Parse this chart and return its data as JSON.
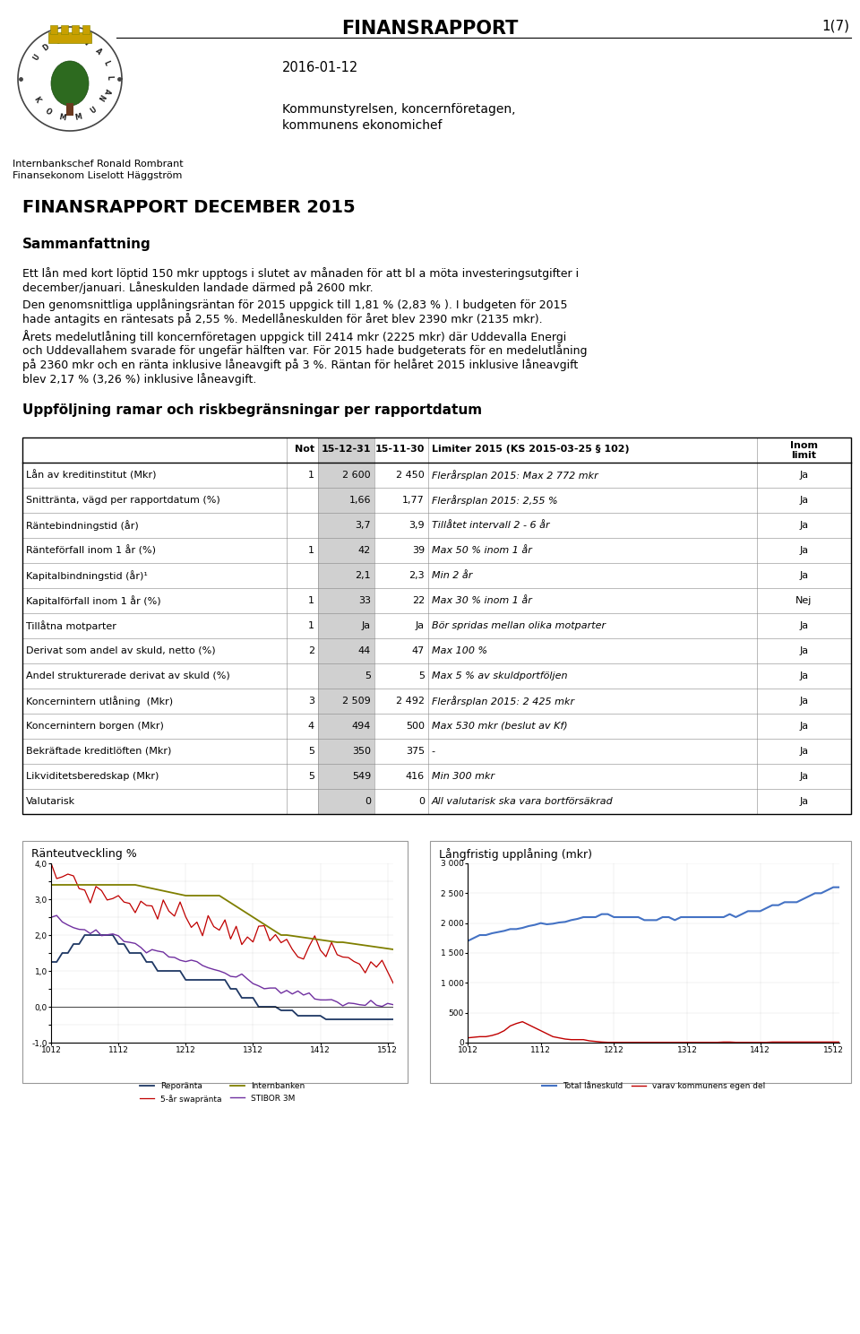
{
  "title_header": "FINANSRAPPORT",
  "page_number": "1(7)",
  "date": "2016-01-12",
  "addressee_line1": "Kommunstyrelsen, koncernföretagen,",
  "addressee_line2": "kommunens ekonomichef",
  "author_line1": "Internbankschef Ronald Rombrant",
  "author_line2": "Finansekonom Liselott Häggström",
  "main_title": "FINANSRAPPORT DECEMBER 2015",
  "section_title": "Sammanfattning",
  "body_text_para1": [
    "Ett lån med kort löptid 150 mkr upptogs i slutet av månaden för att bl a möta investeringsutgifter i",
    "december/januari. Låneskulden landade därmed på 2600 mkr."
  ],
  "body_text_para2": [
    "Den genomsnittliga upplåningsräntan för 2015 uppgick till 1,81 % (2,83 % ). I budgeten för 2015",
    "hade antagits en räntesats på 2,55 %. Medellåneskulden för året blev 2390 mkr (2135 mkr)."
  ],
  "body_text_para3": [
    "Årets medelutlåning till koncernföretagen uppgick till 2414 mkr (2225 mkr) där Uddevalla Energi",
    "och Uddevallahem svarade för ungefär hälften var. För 2015 hade budgeterats för en medelutlåning",
    "på 2360 mkr och en ränta inklusive låneavgift på 3 %. Räntan för helåret 2015 inklusive låneavgift",
    "blev 2,17 % (3,26 %) inklusive låneavgift."
  ],
  "section_title2": "Uppföljning ramar och riskbegränsningar per rapportdatum",
  "table_rows": [
    [
      "Lån av kreditinstitut (Mkr)",
      "1",
      "2 600",
      "2 450",
      "Flerårsplan 2015: Max 2 772 mkr",
      "Ja"
    ],
    [
      "Snittränta, vägd per rapportdatum (%)",
      "",
      "1,66",
      "1,77",
      "Flerårsplan 2015: 2,55 %",
      "Ja"
    ],
    [
      "Räntebindningstid (år)",
      "",
      "3,7",
      "3,9",
      "Tillåtet intervall 2 - 6 år",
      "Ja"
    ],
    [
      "Ränteförfall inom 1 år (%)",
      "1",
      "42",
      "39",
      "Max 50 % inom 1 år",
      "Ja"
    ],
    [
      "Kapitalbindningstid (år)¹",
      "",
      "2,1",
      "2,3",
      "Min 2 år",
      "Ja"
    ],
    [
      "Kapitalförfall inom 1 år (%)",
      "1",
      "33",
      "22",
      "Max 30 % inom 1 år",
      "Nej"
    ],
    [
      "Tillåtna motparter",
      "1",
      "Ja",
      "Ja",
      "Bör spridas mellan olika motparter",
      "Ja"
    ],
    [
      "Derivat som andel av skuld, netto (%)",
      "2",
      "44",
      "47",
      "Max 100 %",
      "Ja"
    ],
    [
      "Andel strukturerade derivat av skuld (%)",
      "",
      "5",
      "5",
      "Max 5 % av skuldportföljen",
      "Ja"
    ],
    [
      "Koncernintern utlåning  (Mkr)",
      "3",
      "2 509",
      "2 492",
      "Flerårsplan 2015: 2 425 mkr",
      "Ja"
    ],
    [
      "Koncernintern borgen (Mkr)",
      "4",
      "494",
      "500",
      "Max 530 mkr (beslut av Kf)",
      "Ja"
    ],
    [
      "Bekräftade kreditlöften (Mkr)",
      "5",
      "350",
      "375",
      "-",
      "Ja"
    ],
    [
      "Likviditetsberedskap (Mkr)",
      "5",
      "549",
      "416",
      "Min 300 mkr",
      "Ja"
    ],
    [
      "Valutarisk",
      "",
      "0",
      "0",
      "All valutarisk ska vara bortförsäkrad",
      "Ja"
    ]
  ],
  "chart1_title": "Ränteutveckling %",
  "chart2_title": "Långfristig upplåning (mkr)",
  "bg_color": "#ffffff",
  "text_color": "#000000",
  "shade_col_color": "#d0d0d0",
  "table_border_color": "#000000",
  "table_line_color": "#888888"
}
